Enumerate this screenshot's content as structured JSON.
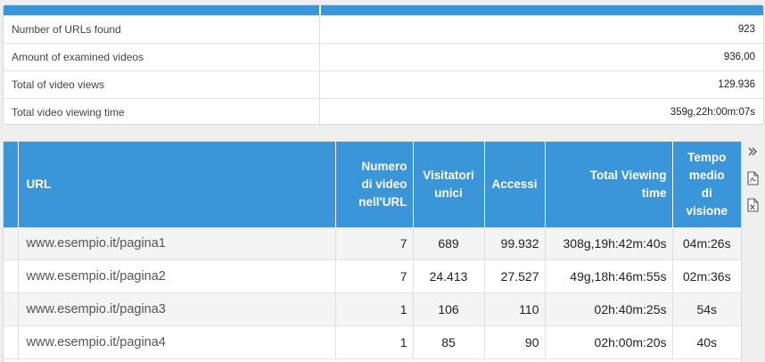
{
  "summary": {
    "rows": [
      {
        "label": "Number of URLs found",
        "value": "923"
      },
      {
        "label": "Amount of examined videos",
        "value": "936,00"
      },
      {
        "label": "Total of video views",
        "value": "129.936"
      },
      {
        "label": "Total video viewing time",
        "value": "359g,22h:00m:07s"
      }
    ]
  },
  "table": {
    "headers": {
      "url": "URL",
      "videos_line1": "Numero",
      "videos_line2": "di video",
      "videos_line3": "nell'URL",
      "visitors_line1": "Visitatori",
      "visitors_line2": "unici",
      "accesses": "Accessi",
      "total_time_line1": "Total Viewing",
      "total_time_line2": "time",
      "avg_line1": "Tempo",
      "avg_line2": "medio",
      "avg_line3": "di",
      "avg_line4": "visione"
    },
    "rows": [
      {
        "url": "www.esempio.it/pagina1",
        "videos": "7",
        "visitors": "689",
        "accesses": "99.932",
        "total_time": "308g,19h:42m:40s",
        "avg": "04m:26s"
      },
      {
        "url": "www.esempio.it/pagina2",
        "videos": "7",
        "visitors": "24.413",
        "accesses": "27.527",
        "total_time": "49g,18h:46m:55s",
        "avg": "02m:36s"
      },
      {
        "url": "www.esempio.it/pagina3",
        "videos": "1",
        "visitors": "106",
        "accesses": "110",
        "total_time": "02h:40m:25s",
        "avg": "54s"
      },
      {
        "url": "www.esempio.it/pagina4",
        "videos": "1",
        "visitors": "85",
        "accesses": "90",
        "total_time": "02h:00m:20s",
        "avg": "40s"
      }
    ]
  },
  "toolbar": {
    "expand_icon": "chevron-double-right-icon",
    "pdf_icon": "pdf-icon",
    "excel_icon": "excel-icon"
  },
  "colors": {
    "header_blue": "#3a96d9",
    "alt_row": "#f4f4f4"
  }
}
